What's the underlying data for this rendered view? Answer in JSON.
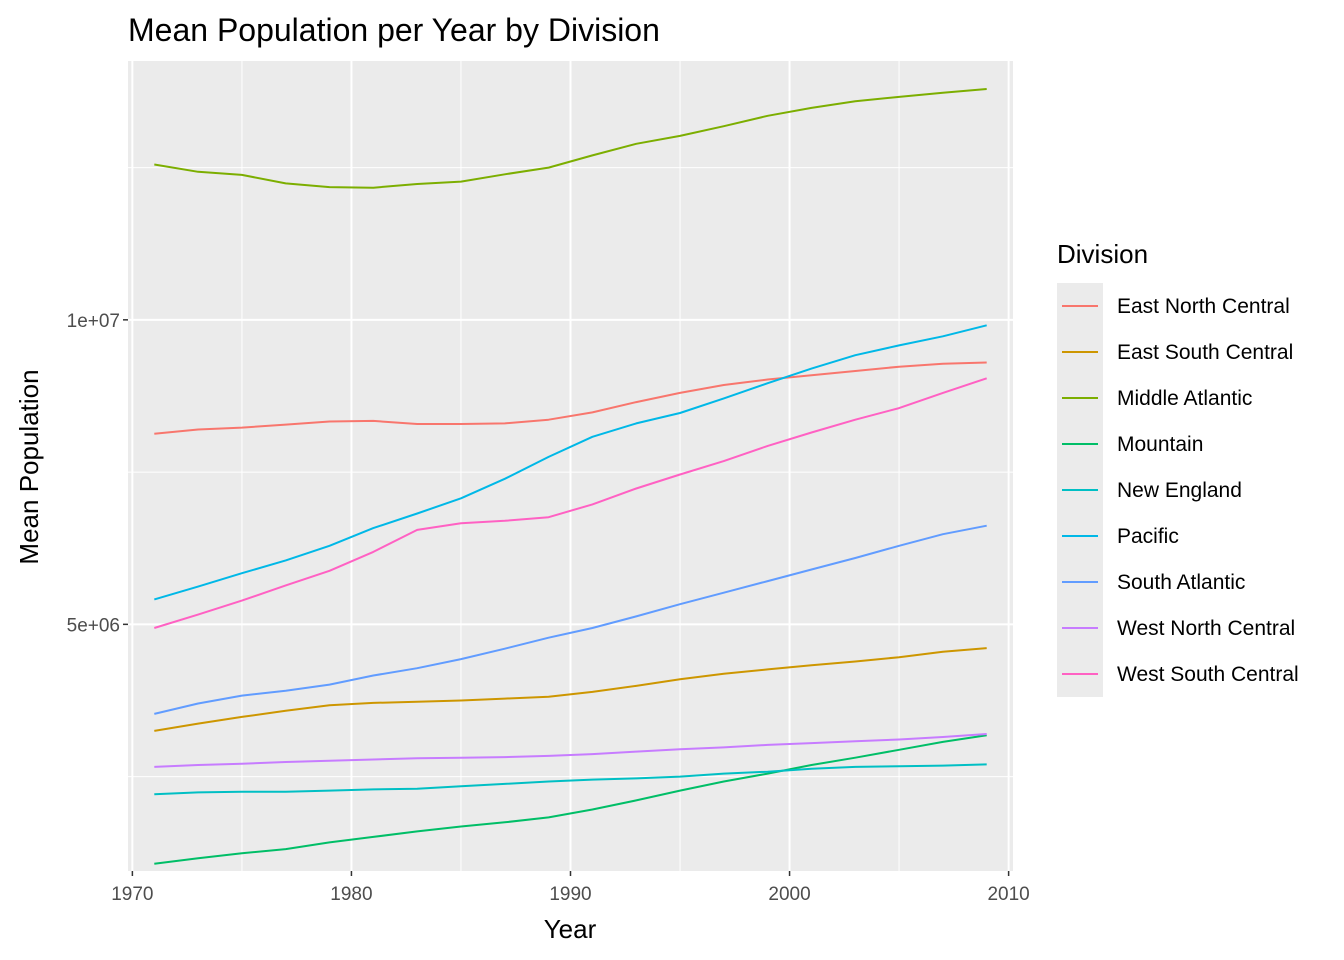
{
  "chart_data": {
    "type": "line",
    "title": "Mean Population per Year by Division",
    "xlabel": "Year",
    "ylabel": "Mean Population",
    "xlim": [
      1969.8,
      2010.2
    ],
    "ylim": [
      950000,
      14250000
    ],
    "x_ticks": [
      1970,
      1980,
      1990,
      2000,
      2010
    ],
    "y_ticks": [
      5000000,
      10000000
    ],
    "y_tick_labels": [
      "5e+06",
      "1e+07"
    ],
    "grid": true,
    "legend": {
      "title": "Division",
      "position": "right"
    },
    "x": [
      1971,
      1973,
      1975,
      1977,
      1979,
      1981,
      1983,
      1985,
      1987,
      1989,
      1991,
      1993,
      1995,
      1997,
      1999,
      2001,
      2003,
      2005,
      2007,
      2009
    ],
    "series": [
      {
        "name": "East North Central",
        "color": "#F8766D",
        "values": [
          8130000,
          8200000,
          8230000,
          8280000,
          8330000,
          8340000,
          8290000,
          8290000,
          8300000,
          8360000,
          8480000,
          8650000,
          8800000,
          8930000,
          9020000,
          9090000,
          9160000,
          9230000,
          9280000,
          9300000
        ]
      },
      {
        "name": "East South Central",
        "color": "#CD9600",
        "values": [
          3250000,
          3370000,
          3480000,
          3580000,
          3670000,
          3710000,
          3730000,
          3750000,
          3780000,
          3810000,
          3890000,
          3990000,
          4100000,
          4190000,
          4260000,
          4330000,
          4390000,
          4460000,
          4550000,
          4610000
        ]
      },
      {
        "name": "Middle Atlantic",
        "color": "#7CAE00",
        "values": [
          12550000,
          12430000,
          12380000,
          12240000,
          12180000,
          12170000,
          12230000,
          12270000,
          12390000,
          12500000,
          12700000,
          12890000,
          13020000,
          13180000,
          13350000,
          13480000,
          13590000,
          13660000,
          13730000,
          13790000
        ]
      },
      {
        "name": "Mountain",
        "color": "#00BE67",
        "values": [
          1070000,
          1160000,
          1240000,
          1310000,
          1420000,
          1510000,
          1600000,
          1680000,
          1750000,
          1830000,
          1960000,
          2110000,
          2270000,
          2420000,
          2550000,
          2690000,
          2810000,
          2940000,
          3070000,
          3180000
        ]
      },
      {
        "name": "New England",
        "color": "#00BFC4",
        "values": [
          2210000,
          2240000,
          2250000,
          2250000,
          2270000,
          2290000,
          2300000,
          2340000,
          2380000,
          2420000,
          2450000,
          2470000,
          2500000,
          2550000,
          2580000,
          2630000,
          2660000,
          2670000,
          2680000,
          2700000
        ]
      },
      {
        "name": "Pacific",
        "color": "#00B8E7",
        "values": [
          5410000,
          5620000,
          5840000,
          6050000,
          6290000,
          6580000,
          6820000,
          7070000,
          7390000,
          7750000,
          8080000,
          8300000,
          8470000,
          8710000,
          8960000,
          9200000,
          9420000,
          9580000,
          9730000,
          9910000
        ]
      },
      {
        "name": "South Atlantic",
        "color": "#619CFF",
        "values": [
          3530000,
          3700000,
          3830000,
          3910000,
          4010000,
          4160000,
          4280000,
          4430000,
          4600000,
          4780000,
          4940000,
          5130000,
          5330000,
          5520000,
          5710000,
          5900000,
          6090000,
          6290000,
          6480000,
          6620000
        ]
      },
      {
        "name": "West North Central",
        "color": "#C77CFF",
        "values": [
          2660000,
          2690000,
          2710000,
          2740000,
          2760000,
          2780000,
          2800000,
          2810000,
          2820000,
          2840000,
          2870000,
          2910000,
          2950000,
          2980000,
          3020000,
          3050000,
          3080000,
          3110000,
          3150000,
          3200000
        ]
      },
      {
        "name": "West South Central",
        "color": "#FF61C3",
        "values": [
          4940000,
          5160000,
          5390000,
          5640000,
          5880000,
          6190000,
          6550000,
          6660000,
          6700000,
          6760000,
          6970000,
          7230000,
          7460000,
          7680000,
          7930000,
          8150000,
          8360000,
          8550000,
          8800000,
          9040000
        ]
      }
    ]
  }
}
